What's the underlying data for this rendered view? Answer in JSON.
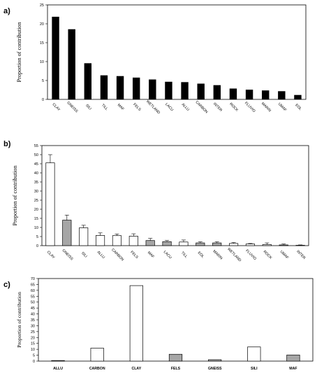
{
  "chart_data": [
    {
      "panel": "a)",
      "type": "bar",
      "ylabel": "Proportion of contribution",
      "ylim": [
        0,
        25
      ],
      "yticks": [
        0,
        5,
        10,
        15,
        20,
        25
      ],
      "categories": [
        "CLAY",
        "GNEISS",
        "SILI",
        "TILL",
        "MAF",
        "FELS",
        "WETLAND",
        "LACU",
        "ALLU",
        "CARBON",
        "INTER",
        "ROCK",
        "FLUVIO",
        "MARIN",
        "UMAF",
        "EOL"
      ],
      "values": [
        21.8,
        18.5,
        9.5,
        6.3,
        6.1,
        5.7,
        5.2,
        4.6,
        4.5,
        4.1,
        3.7,
        2.8,
        2.5,
        2.3,
        2.1,
        1.1
      ],
      "bar_color": "#000000",
      "labels_rotated": true,
      "grid": false
    },
    {
      "panel": "b)",
      "type": "bar",
      "ylabel": "Proportion of contribution",
      "ylim": [
        0,
        55
      ],
      "yticks": [
        0,
        5,
        10,
        15,
        20,
        25,
        30,
        35,
        40,
        45,
        50,
        55
      ],
      "categories": [
        "CLAY",
        "GNEISS",
        "SILI",
        "ALLU",
        "CARBON",
        "FELS",
        "MAF",
        "LACU",
        "TILL",
        "EOL",
        "MARIN",
        "WETLAND",
        "FLUVIO",
        "ROCK",
        "UMAF",
        "INTER"
      ],
      "values": [
        45.5,
        14,
        9.8,
        5.6,
        5.5,
        5.2,
        2.8,
        2.2,
        2.0,
        1.5,
        1.5,
        1.2,
        0.9,
        0.6,
        0.4,
        0.2
      ],
      "errors": [
        4.5,
        2.8,
        1.4,
        1.4,
        0.9,
        1.3,
        1.2,
        0.6,
        1.1,
        0.6,
        0.6,
        0.5,
        0.3,
        0.9,
        0.5,
        0.2
      ],
      "fills": [
        "#ffffff",
        "#a6a6a6",
        "#ffffff",
        "#ffffff",
        "#ffffff",
        "#ffffff",
        "#a6a6a6",
        "#a6a6a6",
        "#ffffff",
        "#a6a6a6",
        "#a6a6a6",
        "#ffffff",
        "#ffffff",
        "#ffffff",
        "#a6a6a6",
        "#a6a6a6"
      ],
      "labels_rotated": true,
      "grid": false
    },
    {
      "panel": "c)",
      "type": "bar",
      "ylabel": "Proportion of contribution",
      "ylim": [
        0,
        70
      ],
      "yticks": [
        0,
        5,
        10,
        15,
        20,
        25,
        30,
        35,
        40,
        45,
        50,
        55,
        60,
        65,
        70
      ],
      "categories": [
        "ALLU",
        "CARBON",
        "CLAY",
        "FELS",
        "GNEISS",
        "SILI",
        "MAF"
      ],
      "values": [
        0.5,
        11,
        64,
        5.8,
        1.2,
        12,
        5.2
      ],
      "fills": [
        "#a6a6a6",
        "#ffffff",
        "#ffffff",
        "#a6a6a6",
        "#a6a6a6",
        "#ffffff",
        "#a6a6a6"
      ],
      "labels_rotated": false,
      "grid": false
    }
  ]
}
